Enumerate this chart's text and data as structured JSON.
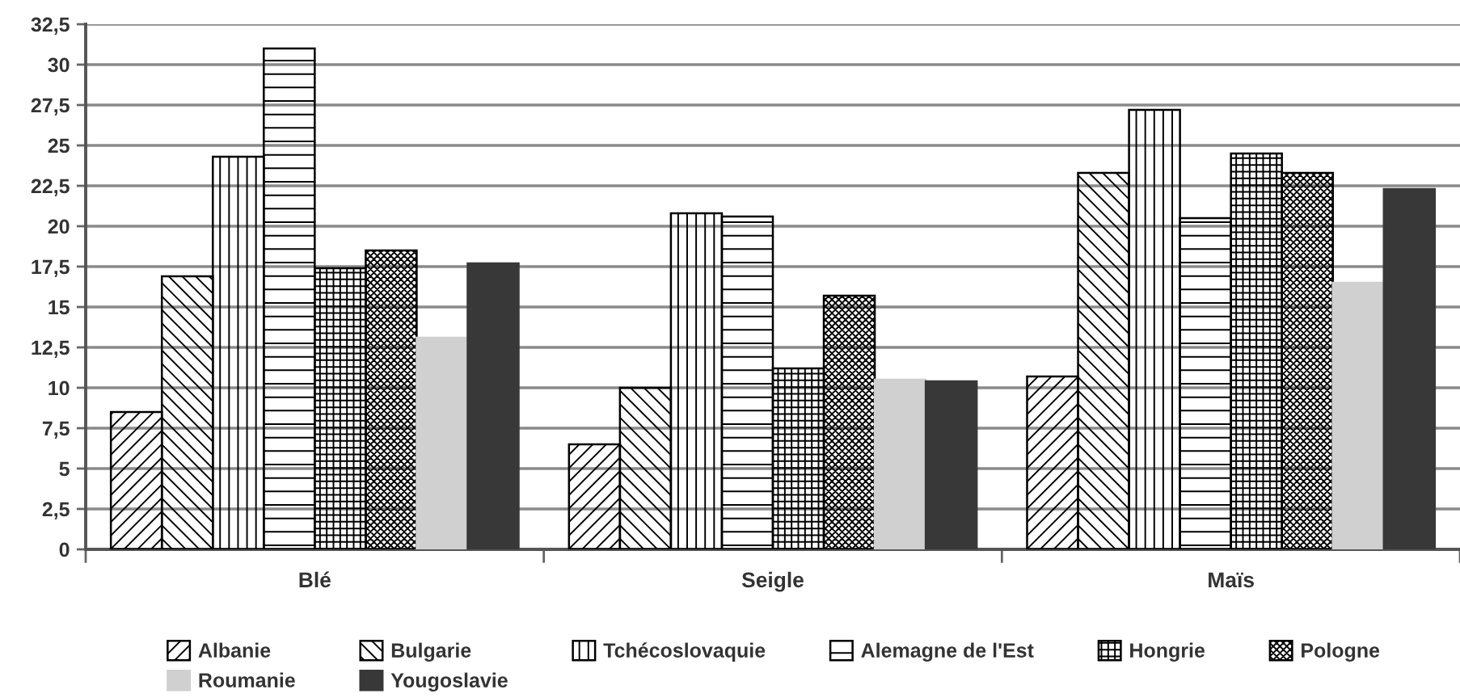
{
  "chart_data": {
    "type": "bar",
    "categories": [
      "Blé",
      "Seigle",
      "Maïs"
    ],
    "series": [
      {
        "name": "Albanie",
        "color": "#000000",
        "values": [
          8.5,
          6.5,
          10.7
        ]
      },
      {
        "name": "Bulgarie",
        "color": "#000000",
        "values": [
          16.9,
          10.0,
          23.3
        ]
      },
      {
        "name": "Tchécoslovaquie",
        "color": "#000000",
        "values": [
          24.3,
          20.8,
          27.2
        ]
      },
      {
        "name": "Alemagne de l'Est",
        "color": "#000000",
        "values": [
          31.0,
          20.6,
          20.5
        ]
      },
      {
        "name": "Hongrie",
        "color": "#000000",
        "values": [
          17.4,
          11.2,
          24.5
        ]
      },
      {
        "name": "Pologne",
        "color": "#000000",
        "values": [
          18.5,
          15.7,
          23.3
        ]
      },
      {
        "name": "Roumanie",
        "color": "#d0d0d0",
        "values": [
          13.1,
          10.5,
          16.5
        ]
      },
      {
        "name": "Yougoslavie",
        "color": "#383838",
        "values": [
          17.7,
          10.4,
          22.3
        ]
      }
    ],
    "ylim": [
      0,
      32.5
    ],
    "yticks": [
      0,
      {
        "value": 2.5,
        "label": "2,5"
      },
      5,
      {
        "value": 7.5,
        "label": "7,5"
      },
      10,
      {
        "value": 12.5,
        "label": "12,5"
      },
      15,
      {
        "value": 17.5,
        "label": "17,5"
      },
      20,
      {
        "value": 22.5,
        "label": "22,5"
      },
      25,
      {
        "value": 27.5,
        "label": "27,5"
      },
      30,
      {
        "value": 32.5,
        "label": "32,5"
      }
    ],
    "grid": "y",
    "legend": "bottom"
  }
}
